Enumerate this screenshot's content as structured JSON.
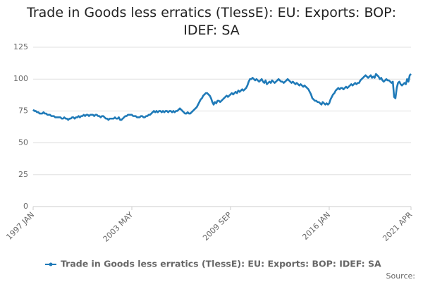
{
  "chart_data": {
    "type": "line",
    "title": "Trade in Goods less erratics (TlessE): EU: Exports: BOP: IDEF: SA",
    "categories": [
      "1997 JAN",
      null,
      null,
      null,
      null,
      null,
      null,
      null,
      null,
      null,
      null,
      null,
      null,
      null,
      null,
      null,
      null,
      null,
      null,
      null,
      null,
      null,
      null,
      null,
      null,
      null,
      null,
      null,
      null,
      null,
      null,
      null,
      null,
      null,
      null,
      null,
      null,
      null,
      null,
      null,
      null,
      null,
      null,
      null,
      null,
      null,
      null,
      null,
      null,
      null,
      null,
      null,
      null,
      null,
      null,
      null,
      null,
      null,
      null,
      null,
      null,
      null,
      null,
      null,
      null,
      null,
      null,
      null,
      null,
      null,
      null,
      null,
      null,
      null,
      null,
      null,
      "2003 MAY",
      null,
      null,
      null,
      null,
      null,
      null,
      null,
      null,
      null,
      null,
      null,
      null,
      null,
      null,
      null,
      null,
      null,
      null,
      null,
      null,
      null,
      null,
      null,
      null,
      null,
      null,
      null,
      null,
      null,
      null,
      null,
      null,
      null,
      null,
      null,
      null,
      null,
      null,
      null,
      null,
      null,
      null,
      null,
      null,
      null,
      null,
      null,
      null,
      null,
      null,
      null,
      null,
      null,
      null,
      null,
      null,
      null,
      null,
      null,
      null,
      null,
      null,
      null,
      null,
      null,
      null,
      null,
      null,
      null,
      null,
      null,
      null,
      null,
      null,
      null,
      "2009 SEP",
      null,
      null,
      null,
      null,
      null,
      null,
      null,
      null,
      null,
      null,
      null,
      null,
      null,
      null,
      null,
      null,
      null,
      null,
      null,
      null,
      null,
      null,
      null,
      null,
      null,
      null,
      null,
      null,
      null,
      null,
      null,
      null,
      null,
      null,
      null,
      null,
      null,
      null,
      null,
      null,
      null,
      null,
      null,
      null,
      null,
      null,
      null,
      null,
      null,
      null,
      null,
      null,
      null,
      null,
      null,
      null,
      null,
      null,
      null,
      null,
      null,
      null,
      null,
      null,
      null,
      null,
      null,
      null,
      null,
      null,
      null,
      null,
      null,
      null,
      null,
      "2016 JAN",
      null,
      null,
      null,
      null,
      null,
      null,
      null,
      null,
      null,
      null,
      null,
      null,
      null,
      null,
      null,
      null,
      null,
      null,
      null,
      null,
      null,
      null,
      null,
      null,
      null,
      null,
      null,
      null,
      null,
      null,
      null,
      null,
      null,
      null,
      null,
      null,
      null,
      null,
      null,
      null,
      null,
      null,
      null,
      null,
      null,
      null,
      null,
      null,
      null,
      null,
      null,
      null,
      null,
      null,
      null,
      null,
      null,
      null,
      null,
      null,
      null,
      null,
      "2021 APR"
    ],
    "series": [
      {
        "name": "Trade in Goods less erratics (TlessE): EU: Exports: BOP: IDEF: SA",
        "color": "#1f7ab8",
        "values": [
          76,
          75,
          75,
          74,
          74,
          73,
          73,
          73,
          74,
          73,
          73,
          72,
          72,
          72,
          71,
          71,
          71,
          70,
          70,
          70,
          70,
          70,
          69,
          69,
          70,
          69,
          69,
          68,
          69,
          69,
          70,
          70,
          69,
          70,
          70,
          71,
          70,
          71,
          71,
          72,
          71,
          72,
          72,
          71,
          72,
          72,
          72,
          71,
          72,
          72,
          71,
          71,
          70,
          71,
          71,
          70,
          69,
          69,
          68,
          69,
          69,
          69,
          69,
          70,
          69,
          69,
          70,
          68,
          68,
          69,
          70,
          71,
          71,
          72,
          72,
          72,
          72,
          71,
          71,
          71,
          70,
          70,
          70,
          71,
          71,
          70,
          70,
          71,
          71,
          72,
          72,
          73,
          74,
          75,
          74,
          75,
          74,
          75,
          75,
          74,
          75,
          74,
          75,
          75,
          74,
          75,
          75,
          74,
          75,
          74,
          75,
          75,
          76,
          77,
          76,
          75,
          74,
          73,
          73,
          74,
          73,
          73,
          74,
          75,
          76,
          77,
          78,
          80,
          82,
          84,
          85,
          87,
          88,
          89,
          89,
          88,
          87,
          85,
          82,
          80,
          82,
          81,
          83,
          83,
          82,
          83,
          84,
          85,
          86,
          87,
          86,
          87,
          88,
          89,
          88,
          89,
          90,
          89,
          91,
          90,
          91,
          92,
          91,
          92,
          93,
          95,
          98,
          100,
          100,
          101,
          100,
          99,
          100,
          99,
          98,
          99,
          100,
          98,
          97,
          99,
          96,
          97,
          98,
          97,
          99,
          98,
          97,
          98,
          99,
          100,
          99,
          98,
          98,
          97,
          98,
          99,
          100,
          99,
          98,
          97,
          98,
          97,
          96,
          97,
          96,
          95,
          96,
          95,
          94,
          95,
          94,
          93,
          92,
          90,
          88,
          85,
          84,
          83,
          83,
          82,
          82,
          81,
          80,
          82,
          81,
          80,
          81,
          80,
          81,
          84,
          86,
          88,
          89,
          91,
          92,
          93,
          92,
          93,
          93,
          92,
          93,
          94,
          93,
          94,
          95,
          96,
          95,
          96,
          97,
          96,
          97,
          97,
          99,
          100,
          101,
          102,
          103,
          102,
          101,
          102,
          103,
          101,
          102,
          101,
          104,
          103,
          102,
          100,
          101,
          99,
          98,
          99,
          100,
          99,
          99,
          98,
          97,
          98,
          86,
          85,
          93,
          97,
          98,
          96,
          95,
          96,
          97,
          96,
          100,
          98,
          103,
          104
        ]
      }
    ],
    "ylim": [
      0,
      125
    ],
    "yticks": [
      0,
      25,
      50,
      75,
      100,
      125
    ],
    "grid": true,
    "legend": "bottom",
    "source": "Source:"
  }
}
